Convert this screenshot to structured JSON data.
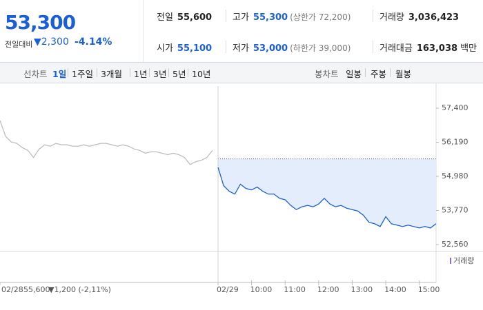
{
  "quote": {
    "price": "53,300",
    "change_label": "전일대비",
    "change": "▼2,300",
    "change_pct": "-4.14%"
  },
  "stats": [
    {
      "label": "전일",
      "value": "55,600"
    },
    {
      "label": "고가",
      "value": "55,300",
      "note": "(상한가 72,200)"
    },
    {
      "label": "거래량",
      "value": "3,036,423"
    },
    {
      "label": "시가",
      "value": "55,100"
    },
    {
      "label": "저가",
      "value": "53,000",
      "note": "(하한가 39,000)"
    },
    {
      "label": "거래대금",
      "value": "163,038",
      "unit": "백만"
    }
  ],
  "tabs": {
    "line_label": "선차트",
    "line": [
      "1일",
      "1주일",
      "3개월",
      "1년",
      "3년",
      "5년",
      "10년"
    ],
    "selected": 0,
    "candle_label": "봉차트",
    "candle": [
      "일봉",
      "주봉",
      "월봉"
    ]
  },
  "chart_data": {
    "type": "line",
    "categories": [
      "02/28",
      null,
      null,
      null,
      null,
      null,
      null,
      null,
      null,
      null,
      null,
      null,
      null,
      null,
      null,
      null,
      null,
      null,
      null,
      null,
      null,
      null,
      null,
      null,
      null,
      null,
      null,
      null,
      null,
      null,
      null,
      null,
      null,
      null,
      null,
      null,
      null,
      null,
      null,
      "02/29",
      null,
      null,
      null,
      null,
      null,
      "10:00",
      null,
      null,
      null,
      null,
      null,
      "11:00",
      null,
      null,
      null,
      null,
      null,
      "12:00",
      null,
      null,
      null,
      null,
      null,
      "13:00",
      null,
      null,
      null,
      null,
      null,
      "14:00",
      null,
      null,
      null,
      null,
      null,
      "15:00",
      null,
      null,
      null
    ],
    "series": [
      {
        "color": "#bdbdbd",
        "values": [
          56960,
          56400,
          56200,
          56150,
          56000,
          55900,
          55650,
          55950,
          56100,
          56050,
          56150,
          56100,
          56100,
          56050,
          56050,
          56100,
          56050,
          56100,
          56150,
          56150,
          56100,
          56050,
          56100,
          56050,
          55950,
          55900,
          55800,
          55850,
          55850,
          55800,
          55750,
          55800,
          55750,
          55650,
          55400,
          55500,
          55550,
          55650,
          55900,
          null,
          null,
          null,
          null,
          null,
          null,
          null,
          null,
          null,
          null,
          null,
          null,
          null,
          null,
          null,
          null,
          null,
          null,
          null,
          null,
          null,
          null,
          null,
          null,
          null,
          null,
          null,
          null,
          null,
          null,
          null,
          null,
          null,
          null,
          null,
          null,
          null,
          null,
          null,
          null
        ]
      },
      {
        "color": "#1a5fd6",
        "fill": "#e4edfb",
        "values": [
          null,
          null,
          null,
          null,
          null,
          null,
          null,
          null,
          null,
          null,
          null,
          null,
          null,
          null,
          null,
          null,
          null,
          null,
          null,
          null,
          null,
          null,
          null,
          null,
          null,
          null,
          null,
          null,
          null,
          null,
          null,
          null,
          null,
          null,
          null,
          null,
          null,
          null,
          null,
          55300,
          54650,
          54450,
          54350,
          54700,
          54550,
          54500,
          54600,
          54450,
          54350,
          54350,
          54200,
          54150,
          53950,
          53800,
          53900,
          53950,
          53900,
          54000,
          54200,
          54000,
          53900,
          53950,
          53850,
          53800,
          53750,
          53600,
          53350,
          53300,
          53200,
          53550,
          53300,
          53250,
          53200,
          53250,
          53200,
          53150,
          53200,
          53150,
          53300
        ]
      }
    ],
    "base": 55600,
    "ylim": [
      52316,
      58182
    ],
    "yticks": [
      {
        "value": 52560,
        "label": "52,560"
      },
      {
        "value": 53770,
        "label": "53,770"
      },
      {
        "value": 54980,
        "label": "54,980"
      },
      {
        "value": 56190,
        "label": "56,190"
      },
      {
        "value": 57400,
        "label": "57,400"
      }
    ],
    "volume_label": "거래량",
    "footer": {
      "date": "02/28",
      "price": "55,600",
      "change": "▼1,200 (-2,11%)"
    }
  }
}
